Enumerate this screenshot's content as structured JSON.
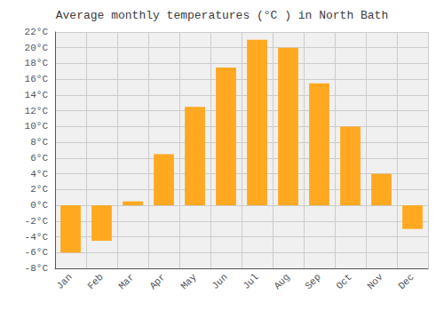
{
  "chart_data": {
    "type": "bar",
    "title": "Average monthly temperatures (°C ) in North Bath",
    "categories": [
      "Jan",
      "Feb",
      "Mar",
      "Apr",
      "May",
      "Jun",
      "Jul",
      "Aug",
      "Sep",
      "Oct",
      "Nov",
      "Dec"
    ],
    "values": [
      -6.0,
      -4.5,
      0.5,
      6.5,
      12.5,
      17.5,
      21.0,
      20.0,
      15.5,
      10.0,
      4.0,
      -3.0
    ],
    "color": "#FFA820",
    "ylim": [
      -8,
      22
    ],
    "yticks": [
      {
        "value": -8,
        "label": "-8°C"
      },
      {
        "value": -6,
        "label": "-6°C"
      },
      {
        "value": -4,
        "label": "-4°C"
      },
      {
        "value": -2,
        "label": "-2°C"
      },
      {
        "value": 0,
        "label": "0°C"
      },
      {
        "value": 2,
        "label": "2°C"
      },
      {
        "value": 4,
        "label": "4°C"
      },
      {
        "value": 6,
        "label": "6°C"
      },
      {
        "value": 8,
        "label": "8°C"
      },
      {
        "value": 10,
        "label": "10°C"
      },
      {
        "value": 12,
        "label": "12°C"
      },
      {
        "value": 14,
        "label": "14°C"
      },
      {
        "value": 16,
        "label": "16°C"
      },
      {
        "value": 18,
        "label": "18°C"
      },
      {
        "value": 20,
        "label": "20°C"
      },
      {
        "value": 22,
        "label": "22°C"
      }
    ],
    "grid": true
  }
}
